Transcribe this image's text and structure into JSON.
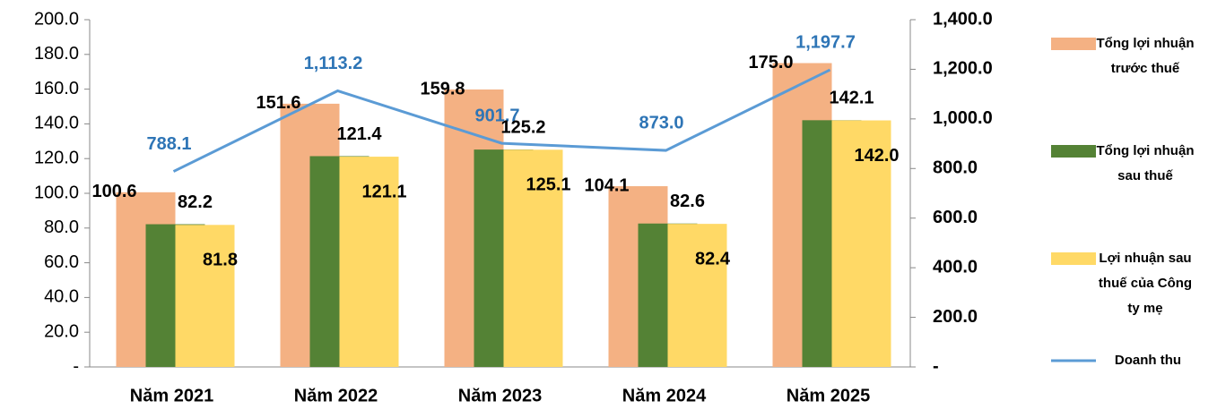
{
  "chart_data": {
    "type": "bar",
    "categories": [
      "Năm 2021",
      "Năm 2022",
      "Năm 2023",
      "Năm 2024",
      "Năm 2025"
    ],
    "series": [
      {
        "name": "Tổng lợi nhuận trước thuế",
        "color": "#F4B183",
        "type": "bar",
        "values": [
          100.6,
          151.6,
          159.8,
          104.1,
          175.0
        ],
        "value_labels": [
          "100.6",
          "151.6",
          "159.8",
          "104.1",
          "175.0"
        ]
      },
      {
        "name": "Tổng lợi nhuận sau thuế",
        "color": "#548235",
        "type": "bar",
        "values": [
          82.2,
          121.4,
          125.2,
          82.6,
          142.1
        ],
        "value_labels": [
          "82.2",
          "121.4",
          "125.2",
          "82.6",
          "142.1"
        ]
      },
      {
        "name": "Lợi nhuận sau thuế của Công ty mẹ",
        "color": "#FFD966",
        "type": "bar",
        "values": [
          81.8,
          121.1,
          125.1,
          82.4,
          142.0
        ],
        "value_labels": [
          "81.8",
          "121.1",
          "125.1",
          "82.4",
          "142.0"
        ]
      },
      {
        "name": "Doanh thu",
        "color": "#5B9BD5",
        "type": "line",
        "axis": "y2",
        "values": [
          788.1,
          1113.2,
          901.7,
          873.0,
          1197.7
        ],
        "value_labels": [
          "788.1",
          "1,113.2",
          "901.7",
          "873.0",
          "1,197.7"
        ]
      }
    ],
    "ylim": [
      0,
      200
    ],
    "yticks": [
      {
        "value": 0,
        "label": "-"
      },
      {
        "value": 20,
        "label": "20.0"
      },
      {
        "value": 40,
        "label": "40.0"
      },
      {
        "value": 60,
        "label": "60.0"
      },
      {
        "value": 80,
        "label": "80.0"
      },
      {
        "value": 100,
        "label": "100.0"
      },
      {
        "value": 120,
        "label": "120.0"
      },
      {
        "value": 140,
        "label": "140.0"
      },
      {
        "value": 160,
        "label": "160.0"
      },
      {
        "value": 180,
        "label": "180.0"
      },
      {
        "value": 200,
        "label": "200.0"
      }
    ],
    "y2lim": [
      0,
      1400
    ],
    "y2ticks": [
      {
        "value": 0,
        "label": "-"
      },
      {
        "value": 200,
        "label": "200.0"
      },
      {
        "value": 400,
        "label": "400.0"
      },
      {
        "value": 600,
        "label": "600.0"
      },
      {
        "value": 800,
        "label": "800.0"
      },
      {
        "value": 1000,
        "label": "1,000.0"
      },
      {
        "value": 1200,
        "label": "1,200.0"
      },
      {
        "value": 1400,
        "label": "1,400.0"
      }
    ],
    "legend": "right"
  }
}
